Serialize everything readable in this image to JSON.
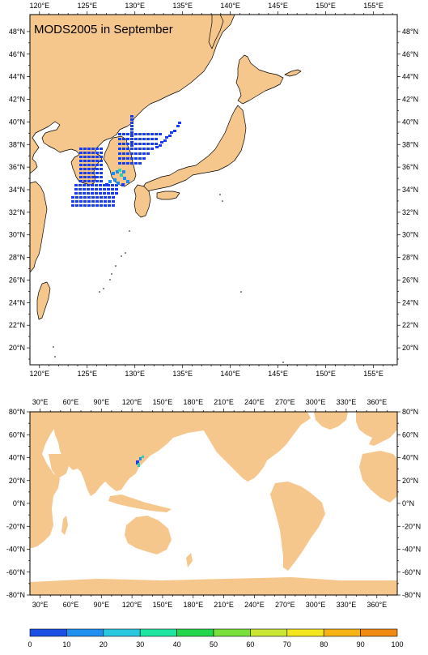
{
  "top_map": {
    "title": "MODS2005 in September",
    "lon_labels": [
      "120°E",
      "125°E",
      "130°E",
      "135°E",
      "140°E",
      "145°E",
      "150°E",
      "155°E"
    ],
    "lat_labels": [
      "48°N",
      "46°N",
      "44°N",
      "42°N",
      "40°N",
      "38°N",
      "36°N",
      "34°N",
      "32°N",
      "30°N",
      "28°N",
      "26°N",
      "24°N",
      "22°N",
      "20°N"
    ],
    "lon_range": [
      119,
      157.5
    ],
    "lat_range": [
      18.5,
      49.5
    ]
  },
  "bottom_map": {
    "lon_labels": [
      "30°E",
      "60°E",
      "90°E",
      "120°E",
      "150°E",
      "180°E",
      "210°E",
      "240°E",
      "270°E",
      "300°E",
      "330°E",
      "360°E"
    ],
    "lat_labels": [
      "80°N",
      "60°N",
      "40°N",
      "20°N",
      "0°N",
      "-20°N",
      "-40°N",
      "-60°N",
      "-80°N"
    ],
    "lon_range": [
      20,
      380
    ],
    "lat_range": [
      -80,
      80
    ]
  },
  "colorbar": {
    "labels": [
      "0",
      "10",
      "20",
      "30",
      "40",
      "50",
      "60",
      "70",
      "80",
      "90",
      "100"
    ],
    "colors": [
      "#1a4fe6",
      "#1e90f0",
      "#28c8e0",
      "#1ee6a0",
      "#22d84a",
      "#78e03a",
      "#c8e632",
      "#f4e61e",
      "#f6b414",
      "#f08a10",
      "#e8501a"
    ]
  },
  "colors": {
    "land": "#f5c78c",
    "ocean": "#ffffff",
    "obs_primary": "#1a3cf0",
    "obs_secondary": "#1e8cf0",
    "obs_high": "#2ad0b0"
  }
}
